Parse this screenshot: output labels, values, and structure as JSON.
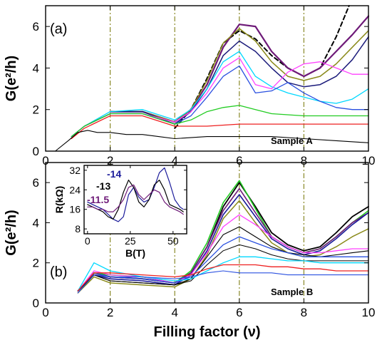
{
  "chart_data": [
    {
      "type": "line",
      "panel_label": "(a)",
      "ylabel": "G(e²/h)",
      "xlim": [
        0,
        10
      ],
      "ylim": [
        0,
        7
      ],
      "xticks": [
        "0",
        "2",
        "4",
        "6",
        "8",
        "10"
      ],
      "yticks": [
        "0",
        "2",
        "4",
        "6"
      ],
      "vlines_x": [
        2,
        4,
        6,
        8
      ],
      "annotation": "Sample A",
      "series": [
        {
          "color": "#000000",
          "dash": "6 4",
          "width": 2,
          "x": [
            4.0,
            4.5,
            5.0,
            5.5,
            6.0,
            6.5,
            7.0,
            7.5,
            8.0,
            8.5,
            9.0,
            9.4
          ],
          "y": [
            1.1,
            2.0,
            3.5,
            5.2,
            5.8,
            5.4,
            4.6,
            4.0,
            3.6,
            4.0,
            5.5,
            7.0
          ]
        },
        {
          "color": "#6e1a78",
          "width": 2.2,
          "x": [
            2.0,
            3.0,
            4.0,
            4.5,
            5.0,
            5.5,
            6.0,
            6.5,
            7.0,
            7.5,
            8.0,
            8.5,
            9.0,
            9.5,
            10.0
          ],
          "y": [
            1.9,
            1.9,
            1.4,
            2.0,
            3.2,
            5.0,
            6.1,
            6.0,
            4.8,
            4.0,
            3.6,
            4.0,
            4.8,
            5.6,
            6.5
          ]
        },
        {
          "color": "#8a8a1a",
          "width": 1.5,
          "x": [
            2.0,
            3.0,
            4.0,
            4.5,
            5.0,
            5.5,
            6.0,
            6.5,
            7.0,
            7.5,
            8.0,
            8.5,
            9.0,
            9.5,
            10.0
          ],
          "y": [
            1.9,
            1.9,
            1.4,
            2.0,
            3.4,
            5.2,
            5.9,
            5.3,
            4.3,
            3.6,
            3.4,
            3.6,
            4.2,
            5.0,
            5.8
          ]
        },
        {
          "color": "#1a1a7a",
          "width": 1.5,
          "x": [
            2.0,
            3.0,
            4.0,
            4.5,
            5.0,
            5.5,
            6.0,
            6.5,
            7.0,
            7.5,
            8.0,
            8.5,
            9.0,
            9.5,
            10.0
          ],
          "y": [
            1.9,
            1.9,
            1.3,
            1.9,
            3.0,
            4.6,
            5.3,
            4.8,
            4.0,
            3.3,
            3.1,
            3.2,
            3.6,
            4.4,
            5.5
          ]
        },
        {
          "color": "#00d8ff",
          "width": 1.3,
          "x": [
            0.8,
            1.2,
            2.0,
            3.0,
            4.0,
            4.5,
            5.0,
            5.5,
            6.0,
            6.5,
            7.0,
            7.5,
            8.0,
            8.5,
            9.0,
            9.5,
            10.0
          ],
          "y": [
            0.7,
            1.2,
            1.9,
            2.0,
            1.5,
            2.0,
            3.0,
            4.3,
            4.8,
            3.6,
            3.1,
            2.8,
            2.6,
            2.4,
            2.3,
            2.5,
            3.0
          ]
        },
        {
          "color": "#ff40ff",
          "width": 1.3,
          "x": [
            0.8,
            1.2,
            2.0,
            3.0,
            4.0,
            4.5,
            5.0,
            5.5,
            6.0,
            6.5,
            7.0,
            7.5,
            8.0,
            8.5,
            9.0,
            9.5,
            10.0
          ],
          "y": [
            0.7,
            1.2,
            1.8,
            1.8,
            1.4,
            1.9,
            2.8,
            4.0,
            4.5,
            3.2,
            3.0,
            3.8,
            4.2,
            4.3,
            4.0,
            3.7,
            3.7
          ]
        },
        {
          "color": "#2a50e0",
          "width": 1.3,
          "x": [
            0.8,
            1.2,
            2.0,
            3.0,
            4.0,
            4.5,
            5.0,
            5.5,
            6.0,
            6.5,
            7.0,
            7.5,
            8.0,
            8.5,
            9.0,
            9.5,
            10.0
          ],
          "y": [
            0.7,
            1.2,
            1.8,
            1.8,
            1.3,
            1.7,
            2.6,
            3.6,
            4.1,
            2.8,
            2.9,
            3.3,
            2.8,
            2.4,
            2.1,
            2.0,
            2.0
          ]
        },
        {
          "color": "#22cc22",
          "width": 1.3,
          "x": [
            0.8,
            1.2,
            2.0,
            3.0,
            4.0,
            4.5,
            5.0,
            5.5,
            6.0,
            6.5,
            7.0,
            8.0,
            9.0,
            10.0
          ],
          "y": [
            0.7,
            1.2,
            1.8,
            1.8,
            1.3,
            1.5,
            1.9,
            2.1,
            2.2,
            2.0,
            1.8,
            1.7,
            1.7,
            1.7
          ]
        },
        {
          "color": "#ee2020",
          "width": 1.3,
          "x": [
            0.8,
            1.2,
            2.0,
            3.0,
            4.0,
            4.5,
            5.0,
            6.0,
            7.0,
            8.0,
            9.0,
            10.0
          ],
          "y": [
            0.6,
            1.1,
            1.7,
            1.7,
            1.2,
            1.2,
            1.2,
            1.3,
            1.3,
            1.3,
            1.3,
            1.3
          ]
        },
        {
          "color": "#000000",
          "width": 1.1,
          "x": [
            0.3,
            0.7,
            1.0,
            1.3,
            1.6,
            2.0,
            2.5,
            3.0,
            3.5,
            4.0,
            5.0,
            6.0,
            7.0,
            8.0,
            9.0,
            10.0
          ],
          "y": [
            0.0,
            0.5,
            0.9,
            1.0,
            0.9,
            0.9,
            0.8,
            0.8,
            0.7,
            0.6,
            0.7,
            0.7,
            0.7,
            0.6,
            0.5,
            0.4
          ]
        }
      ]
    },
    {
      "type": "line",
      "panel_label": "(b)",
      "ylabel": "G(e²/h)",
      "xlabel": "Filling factor (ν)",
      "xlim": [
        0,
        10
      ],
      "ylim": [
        0,
        7
      ],
      "xticks": [
        "0",
        "2",
        "4",
        "6",
        "8",
        "10"
      ],
      "yticks": [
        "0",
        "2",
        "4",
        "6"
      ],
      "vlines_x": [
        2,
        4,
        6,
        8
      ],
      "annotation": "Sample B",
      "series": [
        {
          "color": "#000000",
          "width": 1.8,
          "x": [
            1.0,
            1.5,
            2.0,
            3.0,
            4.0,
            4.5,
            5.0,
            5.5,
            6.0,
            6.5,
            7.0,
            7.5,
            8.0,
            8.5,
            9.0,
            9.5,
            10.0
          ],
          "y": [
            0.6,
            1.5,
            1.3,
            1.2,
            1.0,
            1.5,
            2.8,
            4.8,
            6.0,
            4.8,
            3.5,
            2.9,
            2.6,
            2.8,
            3.5,
            4.3,
            4.8
          ]
        },
        {
          "color": "#22cc22",
          "width": 1.6,
          "x": [
            1.0,
            1.5,
            2.0,
            3.0,
            4.0,
            4.5,
            5.0,
            5.5,
            6.0,
            6.5,
            7.0,
            7.5,
            8.0,
            8.5,
            9.0,
            9.5,
            10.0
          ],
          "y": [
            0.6,
            1.5,
            1.4,
            1.3,
            1.0,
            1.6,
            3.0,
            5.0,
            6.1,
            4.7,
            3.3,
            2.8,
            2.5,
            2.7,
            3.3,
            4.0,
            4.6
          ]
        },
        {
          "color": "#6e1a78",
          "width": 1.6,
          "x": [
            1.0,
            1.5,
            2.0,
            3.0,
            4.0,
            4.5,
            5.0,
            5.5,
            6.0,
            6.5,
            7.0,
            7.5,
            8.0,
            8.5,
            9.0,
            9.5,
            10.0
          ],
          "y": [
            0.6,
            1.4,
            1.3,
            1.2,
            1.0,
            1.5,
            2.8,
            4.6,
            5.7,
            4.5,
            3.3,
            2.8,
            2.5,
            2.7,
            3.3,
            4.0,
            4.5
          ]
        },
        {
          "color": "#1a1a9a",
          "width": 1.6,
          "x": [
            1.0,
            1.5,
            2.0,
            3.0,
            4.0,
            4.5,
            5.0,
            5.5,
            6.0,
            6.5,
            7.0,
            7.5,
            8.0,
            8.5,
            9.0,
            9.5,
            10.0
          ],
          "y": [
            0.6,
            1.4,
            1.2,
            1.1,
            0.9,
            1.4,
            2.6,
            4.4,
            5.4,
            4.3,
            3.2,
            2.7,
            2.4,
            2.6,
            3.2,
            3.9,
            4.5
          ]
        },
        {
          "color": "#8a8a1a",
          "width": 1.5,
          "x": [
            1.0,
            1.5,
            2.0,
            3.0,
            4.0,
            4.5,
            5.0,
            5.5,
            6.0,
            6.5,
            7.0,
            7.5,
            8.0,
            8.5,
            9.0,
            9.5,
            10.0
          ],
          "y": [
            0.5,
            1.3,
            1.0,
            0.9,
            0.8,
            1.2,
            2.4,
            4.2,
            5.1,
            4.0,
            3.0,
            2.5,
            2.3,
            2.4,
            2.8,
            3.3,
            3.7
          ]
        },
        {
          "color": "#ff40ff",
          "width": 1.3,
          "x": [
            1.0,
            1.5,
            2.0,
            3.0,
            4.0,
            4.5,
            5.0,
            5.5,
            6.0,
            6.5,
            7.0,
            7.5,
            8.0,
            8.5,
            9.0,
            9.5,
            10.0
          ],
          "y": [
            0.6,
            1.6,
            1.4,
            1.3,
            1.0,
            1.4,
            2.5,
            3.8,
            4.4,
            3.9,
            3.3,
            2.8,
            2.5,
            2.5,
            2.6,
            2.7,
            2.7
          ]
        },
        {
          "color": "#000000",
          "width": 1.1,
          "x": [
            1.0,
            1.5,
            2.0,
            3.0,
            4.0,
            4.5,
            5.0,
            5.5,
            6.0,
            6.5,
            7.0,
            7.5,
            8.0,
            8.5,
            9.0,
            9.5,
            10.0
          ],
          "y": [
            0.6,
            1.4,
            1.1,
            1.0,
            0.9,
            1.2,
            2.3,
            3.4,
            3.8,
            3.3,
            2.8,
            2.5,
            2.4,
            2.3,
            2.4,
            2.5,
            2.6
          ]
        },
        {
          "color": "#2a50e0",
          "width": 1.3,
          "x": [
            1.0,
            1.5,
            2.0,
            3.0,
            4.0,
            4.5,
            5.0,
            5.5,
            6.0,
            6.5,
            7.0,
            7.5,
            8.0,
            8.5,
            9.0,
            9.5,
            10.0
          ],
          "y": [
            0.6,
            1.5,
            1.3,
            1.2,
            1.0,
            1.3,
            2.1,
            2.9,
            3.3,
            3.0,
            2.7,
            2.5,
            2.3,
            2.3,
            2.3,
            2.3,
            2.3
          ]
        },
        {
          "color": "#000000",
          "width": 1.0,
          "x": [
            1.0,
            1.5,
            2.0,
            3.0,
            4.0,
            4.5,
            5.0,
            5.5,
            6.0,
            6.5,
            7.0,
            7.5,
            8.0,
            8.5,
            9.0,
            9.5,
            10.0
          ],
          "y": [
            0.5,
            1.4,
            1.1,
            1.0,
            0.9,
            1.1,
            1.9,
            2.6,
            2.9,
            2.7,
            2.4,
            2.2,
            2.1,
            2.1,
            2.1,
            2.1,
            2.1
          ]
        },
        {
          "color": "#00d8ff",
          "width": 1.3,
          "x": [
            1.0,
            1.5,
            2.0,
            3.0,
            4.0,
            4.5,
            5.0,
            5.5,
            6.0,
            6.5,
            7.0,
            7.5,
            8.0,
            8.5,
            9.0,
            9.5,
            10.0
          ],
          "y": [
            0.6,
            2.0,
            1.6,
            1.3,
            1.1,
            1.2,
            1.6,
            2.0,
            2.3,
            2.3,
            2.2,
            2.1,
            2.1,
            2.0,
            2.0,
            2.0,
            2.0
          ]
        },
        {
          "color": "#ee2020",
          "width": 1.3,
          "x": [
            1.0,
            1.5,
            2.0,
            3.0,
            4.0,
            4.5,
            5.0,
            5.5,
            6.0,
            6.5,
            7.0,
            7.5,
            8.0,
            8.5,
            9.0,
            9.5,
            10.0
          ],
          "y": [
            0.6,
            1.5,
            1.5,
            1.4,
            1.3,
            1.4,
            1.7,
            1.9,
            1.9,
            1.9,
            1.8,
            1.8,
            1.7,
            1.7,
            1.6,
            1.6,
            1.6
          ]
        },
        {
          "color": "#2a50e0",
          "width": 1.1,
          "x": [
            1.0,
            1.5,
            2.0,
            3.0,
            4.0,
            4.5,
            5.0,
            5.5,
            6.0,
            6.5,
            7.0,
            7.5,
            8.0,
            8.5,
            9.0,
            9.5,
            10.0
          ],
          "y": [
            0.5,
            1.4,
            1.3,
            1.3,
            1.2,
            1.3,
            1.5,
            1.6,
            1.5,
            1.5,
            1.5,
            1.4,
            1.4,
            1.4,
            1.4,
            1.4,
            1.4
          ]
        }
      ]
    },
    {
      "type": "line",
      "panel_label": "inset",
      "xlabel": "B(T)",
      "ylabel": "R(kΩ)",
      "xlim": [
        -2,
        58
      ],
      "ylim": [
        6,
        34
      ],
      "xticks": [
        "0",
        "25",
        "50"
      ],
      "yticks": [
        "8",
        "16",
        "24",
        "32"
      ],
      "labels": [
        {
          "text": "-14",
          "color": "#1a1a9a"
        },
        {
          "text": "-13",
          "color": "#000000"
        },
        {
          "text": "-11.5",
          "color": "#6e1a78"
        }
      ],
      "series": [
        {
          "color": "#1a1a9a",
          "width": 1.2,
          "x": [
            0,
            3,
            6,
            9,
            12,
            15,
            18,
            21,
            24,
            27,
            30,
            33,
            36,
            39,
            42,
            45,
            48,
            51,
            54,
            56
          ],
          "y": [
            19,
            18,
            17,
            16,
            14,
            12,
            11,
            13,
            22,
            25,
            21,
            19,
            20,
            25,
            31,
            33,
            27,
            20,
            17,
            16
          ]
        },
        {
          "color": "#000000",
          "width": 1.2,
          "x": [
            0,
            3,
            6,
            9,
            12,
            15,
            18,
            21,
            24,
            27,
            30,
            33,
            36,
            39,
            42,
            45,
            48,
            51,
            54,
            56
          ],
          "y": [
            18,
            17,
            16,
            15,
            13,
            12,
            16,
            23,
            28,
            25,
            19,
            17,
            20,
            26,
            28,
            24,
            18,
            17,
            16,
            15
          ]
        },
        {
          "color": "#6e1a78",
          "width": 1.2,
          "x": [
            0,
            3,
            6,
            9,
            12,
            15,
            18,
            21,
            24,
            27,
            30,
            33,
            36,
            39,
            42,
            45,
            48,
            51,
            54,
            56
          ],
          "y": [
            17,
            17,
            16,
            16,
            15,
            15,
            17,
            20,
            25,
            26,
            22,
            20,
            22,
            24,
            23,
            19,
            17,
            16,
            15,
            14
          ]
        }
      ]
    }
  ]
}
